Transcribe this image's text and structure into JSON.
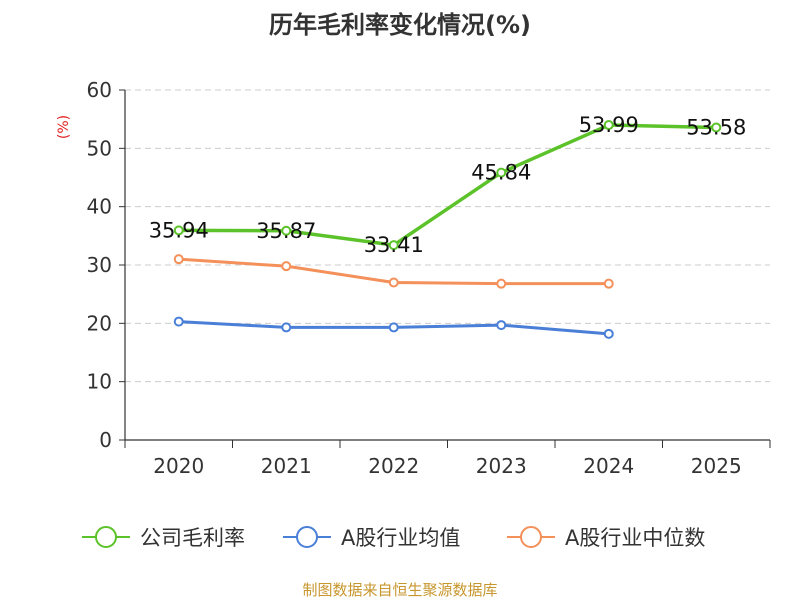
{
  "chart_data": {
    "type": "line",
    "title": "历年毛利率变化情况(%)",
    "ylabel": "(%)",
    "xlabel": "",
    "ylim": [
      0,
      60
    ],
    "yticks": [
      "0",
      "10",
      "20",
      "30",
      "40",
      "50",
      "60"
    ],
    "categories": [
      "2020",
      "2021",
      "2022",
      "2023",
      "2024",
      "2025"
    ],
    "grid": true,
    "legend_position": "bottom",
    "series": [
      {
        "name": "公司毛利率",
        "color": "#5cc22a",
        "values": [
          35.94,
          35.87,
          33.41,
          45.84,
          53.99,
          53.58
        ],
        "labels": [
          "35.94",
          "35.87",
          "33.41",
          "45.84",
          "53.99",
          "53.58"
        ]
      },
      {
        "name": "A股行业均值",
        "color": "#4a7fd8",
        "values": [
          20.3,
          19.3,
          19.3,
          19.7,
          18.2,
          null
        ]
      },
      {
        "name": "A股行业中位数",
        "color": "#f4905a",
        "values": [
          31.0,
          29.8,
          27.0,
          26.8,
          26.8,
          null
        ]
      }
    ],
    "source": "制图数据来自恒生聚源数据库"
  }
}
